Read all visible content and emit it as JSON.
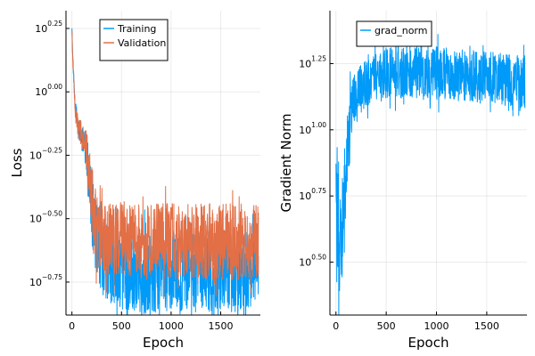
{
  "colors": {
    "training": "#009AF9",
    "validation": "#E26F46",
    "grad_norm": "#009AF9"
  },
  "chart_data": [
    {
      "type": "line",
      "xlabel": "Epoch",
      "ylabel": "Loss",
      "yscale": "log10",
      "xlim": [
        -60,
        1900
      ],
      "ylim_log10": [
        -0.88,
        0.32
      ],
      "xticks": [
        0,
        500,
        1000,
        1500
      ],
      "xtick_labels": [
        "0",
        "500",
        "1000",
        "1500"
      ],
      "yticks_log10": [
        0.25,
        0.0,
        -0.25,
        -0.5,
        -0.75
      ],
      "ytick_exponents": [
        "0.25",
        "0.00",
        "−0.25",
        "−0.50",
        "−0.75"
      ],
      "ytick_base": "10",
      "grid": true,
      "legend_position": "top-right",
      "series": [
        {
          "name": "Training",
          "description": "approximate smoothed envelope (log10 values)",
          "x": [
            0,
            10,
            30,
            60,
            100,
            150,
            200,
            250,
            300,
            400,
            500,
            600,
            700,
            800,
            1000,
            1200,
            1400,
            1600,
            1800,
            1880
          ],
          "center": [
            0.25,
            0.12,
            -0.05,
            -0.13,
            -0.18,
            -0.25,
            -0.45,
            -0.6,
            -0.65,
            -0.68,
            -0.7,
            -0.7,
            -0.71,
            -0.71,
            -0.71,
            -0.71,
            -0.71,
            -0.71,
            -0.71,
            -0.7
          ],
          "spread": [
            0.0,
            0.02,
            0.03,
            0.04,
            0.05,
            0.08,
            0.14,
            0.16,
            0.15,
            0.16,
            0.16,
            0.16,
            0.16,
            0.16,
            0.16,
            0.16,
            0.16,
            0.16,
            0.16,
            0.15
          ]
        },
        {
          "name": "Validation",
          "description": "approximate smoothed envelope (log10 values)",
          "x": [
            0,
            10,
            30,
            60,
            100,
            150,
            200,
            250,
            300,
            400,
            500,
            600,
            700,
            800,
            1000,
            1200,
            1400,
            1600,
            1800,
            1880
          ],
          "center": [
            0.24,
            0.11,
            -0.06,
            -0.13,
            -0.17,
            -0.24,
            -0.42,
            -0.55,
            -0.58,
            -0.58,
            -0.58,
            -0.59,
            -0.59,
            -0.59,
            -0.59,
            -0.59,
            -0.59,
            -0.59,
            -0.59,
            -0.59
          ],
          "spread": [
            0.0,
            0.02,
            0.03,
            0.04,
            0.05,
            0.08,
            0.13,
            0.14,
            0.14,
            0.15,
            0.15,
            0.15,
            0.15,
            0.15,
            0.15,
            0.15,
            0.15,
            0.15,
            0.15,
            0.14
          ]
        }
      ]
    },
    {
      "type": "line",
      "xlabel": "Epoch",
      "ylabel": "Gradient Norm",
      "yscale": "log10",
      "xlim": [
        -60,
        1900
      ],
      "ylim_log10": [
        0.3,
        1.45
      ],
      "xticks": [
        0,
        500,
        1000,
        1500
      ],
      "xtick_labels": [
        "0",
        "500",
        "1000",
        "1500"
      ],
      "yticks_log10": [
        1.25,
        1.0,
        0.75,
        0.5
      ],
      "ytick_exponents": [
        "1.25",
        "1.00",
        "0.75",
        "0.50"
      ],
      "ytick_base": "10",
      "grid": true,
      "legend_position": "top-right",
      "series": [
        {
          "name": "grad_norm",
          "description": "approximate smoothed envelope (log10 values)",
          "x": [
            0,
            20,
            40,
            60,
            80,
            100,
            130,
            160,
            200,
            300,
            400,
            500,
            700,
            900,
            1100,
            1300,
            1500,
            1700,
            1880
          ],
          "center": [
            0.75,
            0.7,
            0.55,
            0.62,
            0.75,
            0.85,
            0.98,
            1.08,
            1.12,
            1.18,
            1.2,
            1.22,
            1.22,
            1.22,
            1.21,
            1.2,
            1.2,
            1.19,
            1.18
          ],
          "spread": [
            0.2,
            0.3,
            0.18,
            0.18,
            0.18,
            0.15,
            0.14,
            0.12,
            0.1,
            0.09,
            0.09,
            0.1,
            0.1,
            0.1,
            0.1,
            0.1,
            0.1,
            0.1,
            0.1
          ]
        }
      ]
    }
  ]
}
